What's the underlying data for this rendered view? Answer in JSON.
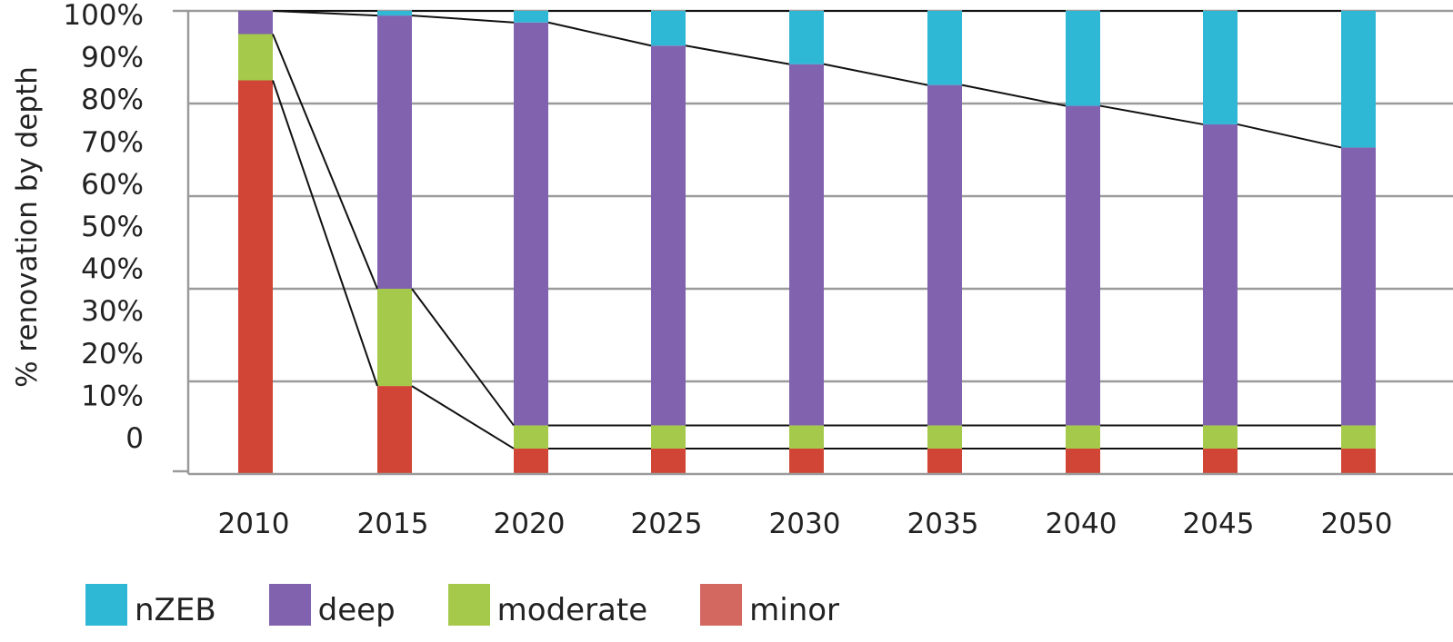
{
  "chart_data": {
    "type": "bar",
    "stacked": true,
    "title": "",
    "xlabel": "",
    "ylabel": "% renovation by depth",
    "ylim": [
      0,
      100
    ],
    "y_tick_labels": [
      "0",
      "10%",
      "20%",
      "30%",
      "40%",
      "50%",
      "60%",
      "70%",
      "80%",
      "90%",
      "100%"
    ],
    "categories": [
      "2010",
      "2015",
      "2020",
      "2025",
      "2030",
      "2035",
      "2040",
      "2045",
      "2050"
    ],
    "series": [
      {
        "name": "minor",
        "color": "#d04535",
        "values": [
          85,
          19,
          5.5,
          5.5,
          5.5,
          5.5,
          5.5,
          5.5,
          5.5
        ]
      },
      {
        "name": "moderate",
        "color": "#a5c94a",
        "values": [
          10,
          21,
          5,
          5,
          5,
          5,
          5,
          5,
          5
        ]
      },
      {
        "name": "deep",
        "color": "#8162ae",
        "values": [
          5,
          59,
          87,
          82,
          78,
          73.5,
          69,
          65,
          60
        ]
      },
      {
        "name": "nZEB",
        "color": "#2fb8d6",
        "values": [
          0,
          1,
          2.5,
          7.5,
          11.5,
          16,
          20.5,
          24.5,
          29.5
        ]
      }
    ],
    "grid": true,
    "legend_position": "bottom-left"
  },
  "legend": {
    "items": [
      {
        "label": "nZEB",
        "color": "#2fb8d6"
      },
      {
        "label": "deep",
        "color": "#8162ae"
      },
      {
        "label": "moderate",
        "color": "#a5c94a"
      },
      {
        "label": "minor",
        "color": "#d2685f"
      }
    ]
  }
}
